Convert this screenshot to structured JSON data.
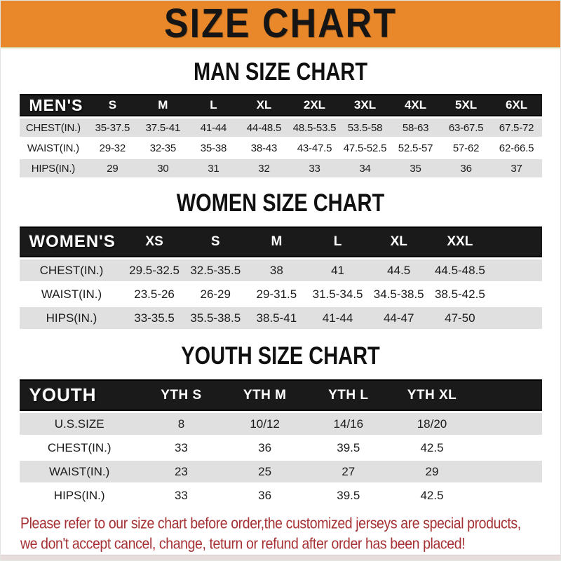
{
  "banner": {
    "title": "SIZE CHART"
  },
  "sections": {
    "men": {
      "heading": "MAN SIZE CHART",
      "label": "MEN'S",
      "sizes": [
        "S",
        "M",
        "L",
        "XL",
        "2XL",
        "3XL",
        "4XL",
        "5XL",
        "6XL"
      ],
      "rows": [
        {
          "label": "CHEST(IN.)",
          "values": [
            "35-37.5",
            "37.5-41",
            "41-44",
            "44-48.5",
            "48.5-53.5",
            "53.5-58",
            "58-63",
            "63-67.5",
            "67.5-72"
          ]
        },
        {
          "label": "WAIST(IN.)",
          "values": [
            "29-32",
            "32-35",
            "35-38",
            "38-43",
            "43-47.5",
            "47.5-52.5",
            "52.5-57",
            "57-62",
            "62-66.5"
          ]
        },
        {
          "label": "HIPS(IN.)",
          "values": [
            "29",
            "30",
            "31",
            "32",
            "33",
            "34",
            "35",
            "36",
            "37"
          ]
        }
      ]
    },
    "women": {
      "heading": "WOMEN SIZE CHART",
      "label": "WOMEN'S",
      "sizes": [
        "XS",
        "S",
        "M",
        "L",
        "XL",
        "XXL"
      ],
      "rows": [
        {
          "label": "CHEST(IN.)",
          "values": [
            "29.5-32.5",
            "32.5-35.5",
            "38",
            "41",
            "44.5",
            "44.5-48.5"
          ]
        },
        {
          "label": "WAIST(IN.)",
          "values": [
            "23.5-26",
            "26-29",
            "29-31.5",
            "31.5-34.5",
            "34.5-38.5",
            "38.5-42.5"
          ]
        },
        {
          "label": "HIPS(IN.)",
          "values": [
            "33-35.5",
            "35.5-38.5",
            "38.5-41",
            "41-44",
            "44-47",
            "47-50"
          ]
        }
      ]
    },
    "youth": {
      "heading": "YOUTH SIZE CHART",
      "label": "YOUTH",
      "sizes": [
        "YTH S",
        "YTH M",
        "YTH L",
        "YTH XL"
      ],
      "rows": [
        {
          "label": "U.S.SIZE",
          "values": [
            "8",
            "10/12",
            "14/16",
            "18/20"
          ]
        },
        {
          "label": "CHEST(IN.)",
          "values": [
            "33",
            "36",
            "39.5",
            "42.5"
          ]
        },
        {
          "label": "WAIST(IN.)",
          "values": [
            "23",
            "25",
            "27",
            "29"
          ]
        },
        {
          "label": "HIPS(IN.)",
          "values": [
            "33",
            "36",
            "39.5",
            "42.5"
          ]
        }
      ]
    }
  },
  "footer": {
    "line1": "Please refer to our size chart before order,the customized jerseys are special products,",
    "line2": "we don't accept cancel, change, teturn or refund after order has been placed!"
  },
  "colors": {
    "banner_orange": "#E8882B",
    "band_black": "#1A1A1A",
    "row_gray": "#E0E0E0",
    "footer_red": "#A53134"
  }
}
